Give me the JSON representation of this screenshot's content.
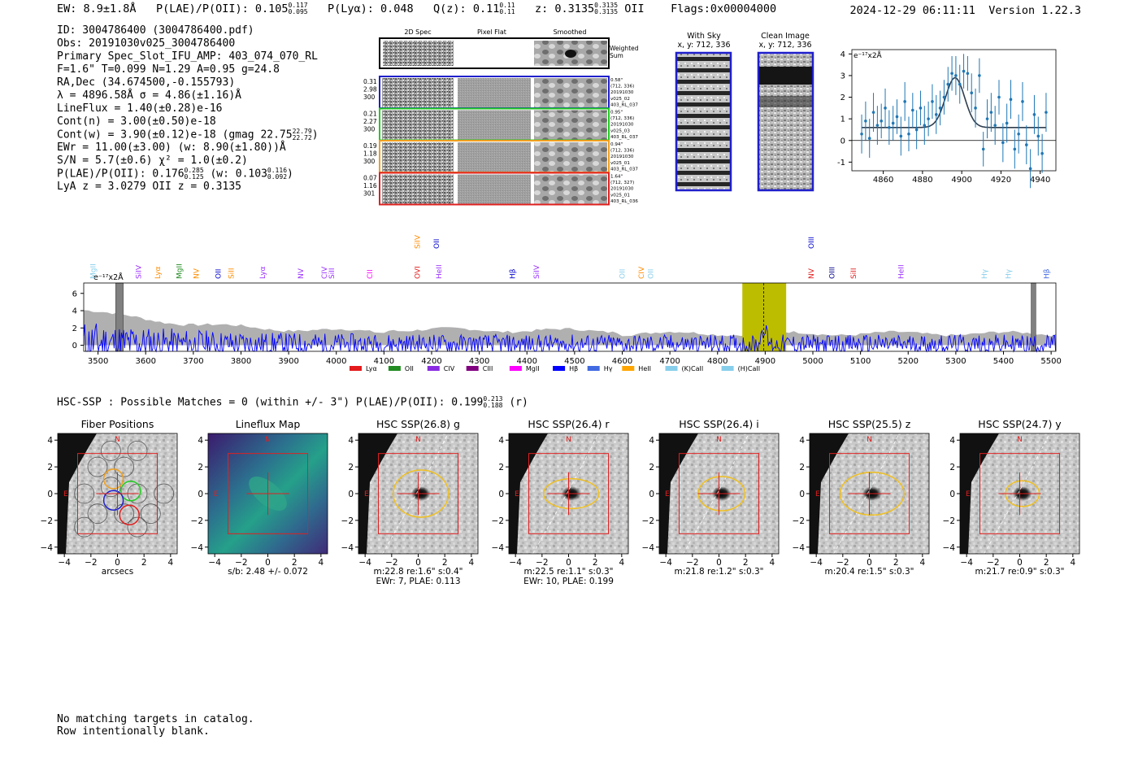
{
  "header": {
    "ew": "EW: 8.9±1.8Å",
    "plae_label": "P(LAE)/P(OII): 0.105",
    "plae_hi": "0.117",
    "plae_lo": "0.095",
    "plya": "P(Lyα): 0.048",
    "q_label": "Q(z): 0.11",
    "q_hi": "0.11",
    "q_lo": "0.11",
    "z_label": "z: 0.3135",
    "z_hi": "0.3135",
    "z_lo": "0.3135",
    "z_line": "OII",
    "flags": "Flags:0x00004000",
    "timestamp": "2024-12-29 06:11:11",
    "version": "Version 1.22.3"
  },
  "info": {
    "id": "ID: 3004786400 (3004786400.pdf)",
    "obs": "Obs: 20191030v025_3004786400",
    "slot": "Primary Spec_Slot_IFU_AMP: 403_074_070_RL",
    "params": "F=1.6\"  T=0.099  N=1.29  A=0.95  g=24.8",
    "radec": "RA,Dec (34.674500,-0.155793)",
    "lambda": "λ = 4896.58Å  σ = 4.86(±1.16)Å",
    "lineflux": "LineFlux = 1.40(±0.28)e-16",
    "contn": "Cont(n) = 3.00(±0.50)e-18",
    "contw": "Cont(w) = 3.90(±0.12)e-18 (gmag 22.75",
    "contw_hi": "22.79",
    "contw_lo": "22.72",
    "ewr": "EWr = 11.00(±3.00) (w: 8.90(±1.80))Å",
    "sn": "S/N = 5.7(±0.6)  χ² = 1.0(±0.2)",
    "plae": "P(LAE)/P(OII): 0.176",
    "plae_hi": "0.285",
    "plae_lo": "0.125",
    "plae_w": "(w: 0.103",
    "plae_w_hi": "0.116",
    "plae_w_lo": "0.092",
    "lya": "LyA z = 3.0279  OII z = 0.3135"
  },
  "cutouts": {
    "col_headers": [
      "2D Spec",
      "Pixel Flat",
      "Smoothed"
    ],
    "weighted_sum": [
      "Weighted",
      "Sum"
    ],
    "rows": [
      {
        "left": [
          "0.31",
          "2.98",
          "300"
        ],
        "right": [
          "0.58\"",
          "(712, 336)",
          "20191030",
          "v025_02",
          "403_RL_037"
        ],
        "color": "#1f1fcc"
      },
      {
        "left": [
          "0.21",
          "2.27",
          "300"
        ],
        "right": [
          "0.95\"",
          "(712, 336)",
          "20191030",
          "v025_03",
          "403_RL_037"
        ],
        "color": "#22cc22"
      },
      {
        "left": [
          "0.19",
          "1.18",
          "300"
        ],
        "right": [
          "0.94\"",
          "(712, 336)",
          "20191030",
          "v025_01",
          "403_RL_037"
        ],
        "color": "#f0a020"
      },
      {
        "left": [
          "0.07",
          "1.16",
          "301"
        ],
        "right": [
          "1.64\"",
          "(712, 327)",
          "20191030",
          "v025_01",
          "403_RL_036"
        ],
        "color": "#e02020"
      }
    ],
    "with_sky": [
      "With Sky",
      "x, y: 712, 336"
    ],
    "clean": [
      "Clean Image",
      "x, y: 712, 336"
    ]
  },
  "line_fit": {
    "unit_label": "e⁻¹⁷x2Å",
    "xlim": [
      4844,
      4948
    ],
    "ylim": [
      -1.4,
      4.2
    ],
    "xticks": [
      4860,
      4880,
      4900,
      4920,
      4940
    ],
    "yticks": [
      -1,
      0,
      1,
      2,
      3,
      4
    ],
    "points_x": [
      4849,
      4851,
      4853,
      4855,
      4857,
      4859,
      4861,
      4863,
      4865,
      4867,
      4869,
      4871,
      4873,
      4875,
      4877,
      4879,
      4881,
      4883,
      4885,
      4887,
      4889,
      4891,
      4893,
      4895,
      4897,
      4899,
      4901,
      4903,
      4905,
      4907,
      4909,
      4911,
      4913,
      4915,
      4917,
      4919,
      4921,
      4923,
      4925,
      4927,
      4929,
      4931,
      4933,
      4935,
      4937,
      4939,
      4941,
      4943
    ],
    "points_y": [
      0.3,
      0.9,
      0.1,
      1.3,
      0.7,
      0.9,
      1.5,
      0.6,
      0.8,
      1.1,
      0.2,
      1.8,
      0.3,
      1.4,
      0.5,
      1.5,
      0.7,
      1.0,
      1.8,
      1.2,
      1.5,
      2.0,
      2.6,
      3.1,
      3.0,
      2.6,
      3.2,
      3.1,
      2.2,
      1.5,
      3.0,
      -0.4,
      1.0,
      1.3,
      0.7,
      2.0,
      -0.1,
      0.8,
      1.9,
      -0.4,
      0.3,
      1.8,
      -0.2,
      -1.3,
      1.2,
      0.2,
      -0.6,
      1.3
    ],
    "errors": [
      0.9,
      0.9,
      0.9,
      0.9,
      0.9,
      0.8,
      0.9,
      0.8,
      0.8,
      0.8,
      0.9,
      0.9,
      0.8,
      0.8,
      0.9,
      0.8,
      0.9,
      0.8,
      0.8,
      0.9,
      0.8,
      0.8,
      0.8,
      0.8,
      0.9,
      0.9,
      0.8,
      0.8,
      0.9,
      0.9,
      0.8,
      0.8,
      0.9,
      0.9,
      0.9,
      0.8,
      0.9,
      0.9,
      0.9,
      0.9,
      0.9,
      0.9,
      0.9,
      0.9,
      0.9,
      0.9,
      0.9,
      0.9
    ],
    "model": {
      "continuum": 0.6,
      "amplitude": 2.3,
      "center": 4896.6,
      "sigma": 4.86
    }
  },
  "chart_data": {
    "type": "line",
    "unit_label": "e⁻¹⁷x2Å",
    "xlim": [
      3470,
      5510
    ],
    "ylim": [
      -0.7,
      7.2
    ],
    "xticks": [
      3500,
      3600,
      3700,
      3800,
      3900,
      4000,
      4100,
      4200,
      4300,
      4400,
      4500,
      4600,
      4700,
      4800,
      4900,
      5000,
      5100,
      5200,
      5300,
      5400,
      5500
    ],
    "yticks": [
      0,
      2,
      4,
      6
    ],
    "highlight_band": [
      4852,
      4944
    ],
    "detection_line": 4897,
    "masked_regions": [
      [
        3537,
        3553
      ],
      [
        5458,
        5468
      ]
    ],
    "line_markers": [
      {
        "label": "MgII",
        "x": 3490,
        "color": "#87ceeb",
        "row": 2
      },
      {
        "label": "SiIV",
        "x": 3585,
        "color": "#9b30ff",
        "row": 2
      },
      {
        "label": "Lyα",
        "x": 3625,
        "color": "#ff8c00",
        "row": 2
      },
      {
        "label": "MgII",
        "x": 3670,
        "color": "#228b22",
        "row": 2
      },
      {
        "label": "NV",
        "x": 3706,
        "color": "#ff8c00",
        "row": 2
      },
      {
        "label": "OII",
        "x": 3752,
        "color": "#0000cd",
        "row": 2
      },
      {
        "label": "SiII",
        "x": 3780,
        "color": "#ff8c00",
        "row": 2
      },
      {
        "label": "Lyα",
        "x": 3845,
        "color": "#9b30ff",
        "row": 2
      },
      {
        "label": "NV",
        "x": 3925,
        "color": "#9b30ff",
        "row": 2
      },
      {
        "label": "CIV",
        "x": 3975,
        "color": "#9b30ff",
        "row": 2
      },
      {
        "label": "SiII",
        "x": 3990,
        "color": "#9b30ff",
        "row": 2
      },
      {
        "label": "CII",
        "x": 4070,
        "color": "#ff00ff",
        "row": 2
      },
      {
        "label": "OVI",
        "x": 4170,
        "color": "#e02020",
        "row": 2
      },
      {
        "label": "SiIV",
        "x": 4170,
        "color": "#ff8c00",
        "row": 1
      },
      {
        "label": "OII",
        "x": 4210,
        "color": "#0000cd",
        "row": 1
      },
      {
        "label": "HeII",
        "x": 4215,
        "color": "#9b30ff",
        "row": 2
      },
      {
        "label": "Hβ",
        "x": 4370,
        "color": "#0000cd",
        "row": 2
      },
      {
        "label": "SiIV",
        "x": 4420,
        "color": "#9b30ff",
        "row": 2
      },
      {
        "label": "OII",
        "x": 4600,
        "color": "#87ceeb",
        "row": 2
      },
      {
        "label": "CIV",
        "x": 4640,
        "color": "#ff8c00",
        "row": 2
      },
      {
        "label": "OII",
        "x": 4660,
        "color": "#87ceeb",
        "row": 2
      },
      {
        "label": "OIII",
        "x": 4997,
        "color": "#0000cd",
        "row": 1
      },
      {
        "label": "NV",
        "x": 4997,
        "color": "#e02020",
        "row": 2
      },
      {
        "label": "OIII",
        "x": 5040,
        "color": "#00008b",
        "row": 2
      },
      {
        "label": "SiII",
        "x": 5085,
        "color": "#e02020",
        "row": 2
      },
      {
        "label": "HeII",
        "x": 5185,
        "color": "#9b30ff",
        "row": 2
      },
      {
        "label": "Hγ",
        "x": 5360,
        "color": "#87ceeb",
        "row": 2
      },
      {
        "label": "Hγ",
        "x": 5410,
        "color": "#87ceeb",
        "row": 2
      },
      {
        "label": "Hβ",
        "x": 5490,
        "color": "#4169e1",
        "row": 2
      }
    ],
    "legend": [
      {
        "label": "Lyα",
        "color": "#e41a1c"
      },
      {
        "label": "OII",
        "color": "#228b22"
      },
      {
        "label": "CIV",
        "color": "#8a2be2"
      },
      {
        "label": "CIII",
        "color": "#800080"
      },
      {
        "label": "MgII",
        "color": "#ff00ff"
      },
      {
        "label": "Hβ",
        "color": "#0000ff"
      },
      {
        "label": "Hγ",
        "color": "#4169e1"
      },
      {
        "label": "HeII",
        "color": "#ffa500"
      },
      {
        "label": "(K)CaII",
        "color": "#87ceeb"
      },
      {
        "label": "(H)CaII",
        "color": "#87ceeb"
      }
    ],
    "series": [
      {
        "color": "#0000ff",
        "style": "line"
      },
      {
        "color": "#b0b0b0",
        "style": "area"
      }
    ]
  },
  "hsc": {
    "title_prefix": "HSC-SSP : Possible Matches = 0 (within +/- 3\")  P(LAE)/P(OII): 0.199",
    "title_hi": "0.213",
    "title_lo": "0.188",
    "title_suffix": "(r)",
    "panels": [
      {
        "title": "Fiber Positions",
        "kind": "fiber",
        "captions": [
          "arcsecs"
        ]
      },
      {
        "title": "Lineflux Map",
        "kind": "flux",
        "captions": [
          "s/b: 2.48 +/- 0.072"
        ]
      },
      {
        "title": "HSC SSP(26.8) g",
        "kind": "img",
        "captions": [
          "m:22.8  re:1.6\"  s:0.4\"",
          "EWr: 7, PLAE: 0.113"
        ],
        "ellipse": [
          1.3,
          1.1
        ]
      },
      {
        "title": "HSC SSP(26.4) r",
        "kind": "img",
        "captions": [
          "m:22.5  re:1.1\"  s:0.3\"",
          "EWr: 10, PLAE: 0.199"
        ],
        "ellipse": [
          1.3,
          0.7
        ]
      },
      {
        "title": "HSC SSP(26.4) i",
        "kind": "img",
        "captions": [
          "m:21.8  re:1.2\"  s:0.3\""
        ],
        "ellipse": [
          1.1,
          0.8
        ]
      },
      {
        "title": "HSC SSP(25.5) z",
        "kind": "img",
        "captions": [
          "m:20.4  re:1.5\"  s:0.3\""
        ],
        "ellipse": [
          1.5,
          1.0
        ]
      },
      {
        "title": "HSC SSP(24.7) y",
        "kind": "img",
        "captions": [
          "m:21.7  re:0.9\"  s:0.3\""
        ],
        "ellipse": [
          0.8,
          0.6
        ]
      }
    ],
    "ticks": [
      -4,
      -2,
      0,
      2,
      4
    ],
    "north_label": "N",
    "east_label": "E"
  },
  "footer": {
    "line1": "No matching targets in catalog.",
    "line2": "Row intentionally blank."
  }
}
